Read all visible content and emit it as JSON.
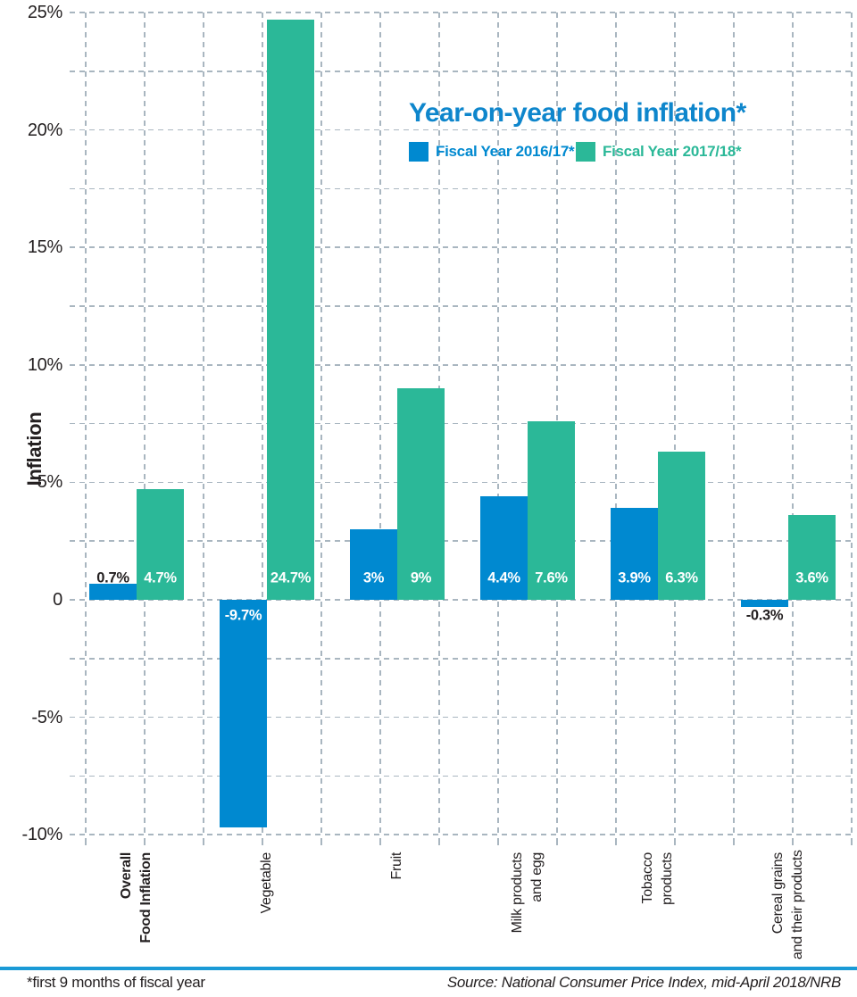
{
  "footer": {
    "note": "*first 9 months of fiscal year",
    "source": "Source: National Consumer Price Index, mid-April 2018/NRB"
  },
  "colors": {
    "blue": "#0089d0",
    "green": "#2bb898",
    "title": "#0e86cc",
    "grid": "#a9b6c0",
    "text": "#231f20",
    "footer_line": "#1a9ad6",
    "label_on_bar": "#ffffff",
    "label_off_bar": "#231f20"
  },
  "chart_data": {
    "type": "bar",
    "title": "Year-on-year food inflation*",
    "xlabel": "",
    "ylabel": "Inflation",
    "ylim": [
      -10,
      25
    ],
    "gridline_interval": 2.5,
    "grid": true,
    "legend_position": "top-center",
    "y_ticks": [
      {
        "label": "25%",
        "value": 25
      },
      {
        "label": "20%",
        "value": 20
      },
      {
        "label": "15%",
        "value": 15
      },
      {
        "label": "10%",
        "value": 10
      },
      {
        "label": "5%",
        "value": 5
      },
      {
        "label": "0",
        "value": 0
      },
      {
        "label": "-5%",
        "value": -5
      },
      {
        "label": "-10%",
        "value": -10
      }
    ],
    "categories": [
      {
        "lines": [
          "Overall",
          "Food Inflation"
        ],
        "bold": true
      },
      {
        "lines": [
          "Vegetable"
        ],
        "bold": false
      },
      {
        "lines": [
          "Fruit"
        ],
        "bold": false
      },
      {
        "lines": [
          "Milk products",
          "and egg"
        ],
        "bold": false
      },
      {
        "lines": [
          "Tobacco",
          "products"
        ],
        "bold": false
      },
      {
        "lines": [
          "Cereal grains",
          "and their products"
        ],
        "bold": false
      }
    ],
    "series": [
      {
        "name": "Fiscal Year 2016/17*",
        "color": "#0089d0",
        "values": [
          0.7,
          -9.7,
          3,
          4.4,
          3.9,
          -0.3
        ],
        "labels": [
          "0.7%",
          "-9.7%",
          "3%",
          "4.4%",
          "3.9%",
          "-0.3%"
        ]
      },
      {
        "name": "Fiscal Year 2017/18*",
        "color": "#2bb898",
        "values": [
          4.7,
          24.7,
          9,
          7.6,
          6.3,
          3.6
        ],
        "labels": [
          "4.7%",
          "24.7%",
          "9%",
          "7.6%",
          "6.3%",
          "3.6%"
        ]
      }
    ]
  }
}
